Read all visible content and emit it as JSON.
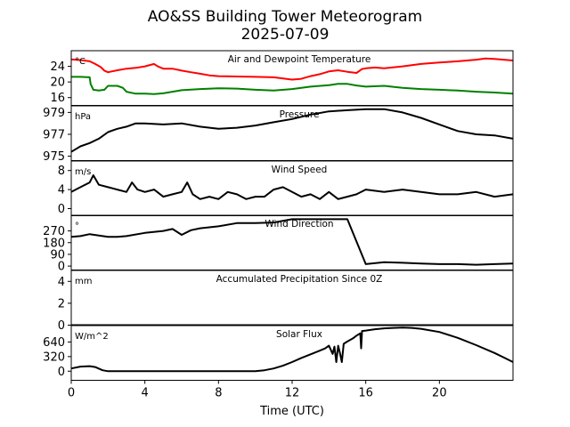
{
  "chart_data": {
    "type": "line",
    "title": "AO&SS Building Tower Meteorogram",
    "subtitle": "2025-07-09",
    "xlabel": "Time (UTC)",
    "x_ticks": [
      0,
      4,
      8,
      12,
      16,
      20
    ],
    "x_tick_labels": [
      "0",
      "4",
      "8",
      "12",
      "16",
      "20"
    ],
    "xlim": [
      0,
      24
    ],
    "panels": [
      {
        "title": "Air and Dewpoint Temperature",
        "unit": "°C",
        "ylim": [
          14,
          28
        ],
        "y_ticks": [
          16,
          20,
          24
        ],
        "y_tick_labels": [
          "16",
          "20",
          "24"
        ],
        "series": [
          {
            "name": "Air Temperature",
            "color": "#ff0000",
            "x": [
              0,
              0.5,
              1.0,
              1.3,
              1.6,
              1.8,
              2.0,
              2.5,
              3.0,
              3.5,
              4.0,
              4.5,
              4.7,
              5.0,
              5.5,
              6.0,
              6.5,
              7.0,
              7.5,
              8.0,
              9.0,
              10.0,
              11.0,
              12.0,
              12.5,
              13.0,
              13.5,
              14.0,
              14.5,
              15.0,
              15.5,
              15.8,
              16.0,
              16.5,
              17.0,
              18.0,
              19.0,
              20.0,
              21.0,
              22.0,
              22.5,
              23.0,
              24.0
            ],
            "y": [
              25.8,
              25.6,
              25.3,
              24.6,
              23.8,
              22.9,
              22.5,
              23.0,
              23.4,
              23.6,
              24.0,
              24.6,
              24.0,
              23.4,
              23.4,
              22.9,
              22.5,
              22.1,
              21.7,
              21.5,
              21.4,
              21.3,
              21.2,
              20.6,
              20.8,
              21.5,
              22.0,
              22.7,
              23.0,
              22.6,
              22.3,
              23.3,
              23.5,
              23.7,
              23.5,
              24.0,
              24.6,
              25.0,
              25.3,
              25.7,
              26.0,
              25.9,
              25.5
            ]
          },
          {
            "name": "Dewpoint Temperature",
            "color": "#008000",
            "x": [
              0,
              0.5,
              1.0,
              1.05,
              1.2,
              1.5,
              1.8,
              2.0,
              2.5,
              2.8,
              3.0,
              3.5,
              4.0,
              4.5,
              5.0,
              5.5,
              6.0,
              7.0,
              8.0,
              9.0,
              10.0,
              11.0,
              12.0,
              13.0,
              14.0,
              14.5,
              15.0,
              15.5,
              16.0,
              17.0,
              18.0,
              19.0,
              20.0,
              21.0,
              22.0,
              23.0,
              24.0
            ],
            "y": [
              21.3,
              21.3,
              21.2,
              19.5,
              18.0,
              17.8,
              18.0,
              19.0,
              19.0,
              18.5,
              17.5,
              17.0,
              17.0,
              16.9,
              17.1,
              17.5,
              17.9,
              18.2,
              18.4,
              18.3,
              18.0,
              17.8,
              18.2,
              18.8,
              19.2,
              19.5,
              19.5,
              19.1,
              18.8,
              19.0,
              18.5,
              18.2,
              18.0,
              17.8,
              17.5,
              17.3,
              17.0
            ]
          }
        ]
      },
      {
        "title": "Pressure",
        "unit": "hPa",
        "ylim": [
          974.6,
          979.6
        ],
        "y_ticks": [
          975,
          977,
          979
        ],
        "y_tick_labels": [
          "975",
          "977",
          "979"
        ],
        "series": [
          {
            "name": "Pressure",
            "color": "#000000",
            "x": [
              0,
              0.5,
              1.0,
              1.5,
              2.0,
              2.5,
              3.0,
              3.5,
              4.0,
              5.0,
              6.0,
              7.0,
              8.0,
              9.0,
              10.0,
              11.0,
              12.0,
              13.0,
              14.0,
              15.0,
              16.0,
              17.0,
              18.0,
              19.0,
              20.0,
              21.0,
              22.0,
              23.0,
              24.0
            ],
            "y": [
              975.4,
              975.9,
              976.2,
              976.6,
              977.2,
              977.5,
              977.7,
              978.0,
              978.0,
              977.9,
              978.0,
              977.7,
              977.5,
              977.6,
              977.8,
              978.1,
              978.4,
              978.8,
              979.1,
              979.2,
              979.3,
              979.3,
              979.0,
              978.5,
              977.9,
              977.3,
              977.0,
              976.9,
              976.6
            ]
          }
        ]
      },
      {
        "title": "Wind Speed",
        "unit": "m/s",
        "ylim": [
          -1.5,
          10
        ],
        "y_ticks": [
          0,
          4,
          8
        ],
        "y_tick_labels": [
          "0",
          "4",
          "8"
        ],
        "series": [
          {
            "name": "Wind Speed",
            "color": "#000000",
            "x": [
              0,
              0.5,
              1.0,
              1.2,
              1.5,
              2.0,
              2.5,
              3.0,
              3.3,
              3.6,
              4.0,
              4.5,
              5.0,
              5.5,
              6.0,
              6.3,
              6.6,
              7.0,
              7.5,
              8.0,
              8.5,
              9.0,
              9.5,
              10.0,
              10.5,
              11.0,
              11.5,
              12.0,
              12.5,
              13.0,
              13.5,
              14.0,
              14.5,
              15.0,
              15.5,
              16.0,
              17.0,
              18.0,
              19.0,
              20.0,
              21.0,
              22.0,
              23.0,
              24.0
            ],
            "y": [
              3.5,
              4.5,
              5.5,
              7.0,
              5.0,
              4.5,
              4.0,
              3.5,
              5.5,
              4.0,
              3.5,
              4.0,
              2.5,
              3.0,
              3.5,
              5.5,
              3.0,
              2.0,
              2.5,
              2.0,
              3.5,
              3.0,
              2.0,
              2.5,
              2.5,
              4.0,
              4.5,
              3.5,
              2.5,
              3.0,
              2.0,
              3.5,
              2.0,
              2.5,
              3.0,
              4.0,
              3.5,
              4.0,
              3.5,
              3.0,
              3.0,
              3.5,
              2.5,
              3.0
            ]
          }
        ]
      },
      {
        "title": "Wind Direction",
        "unit": "°",
        "ylim": [
          -30,
          390
        ],
        "y_ticks": [
          0,
          90,
          180,
          270
        ],
        "y_tick_labels": [
          "0",
          "90",
          "180",
          "270"
        ],
        "series": [
          {
            "name": "Wind Direction",
            "color": "#000000",
            "x": [
              0,
              0.5,
              1.0,
              1.5,
              2.0,
              2.5,
              3.0,
              4.0,
              5.0,
              5.5,
              6.0,
              6.5,
              7.0,
              8.0,
              9.0,
              10.0,
              11.0,
              12.0,
              13.0,
              14.0,
              15.0,
              16.0,
              17.0,
              18.0,
              19.0,
              20.0,
              21.0,
              22.0,
              23.0,
              24.0
            ],
            "y": [
              225,
              230,
              245,
              235,
              225,
              225,
              230,
              255,
              270,
              285,
              240,
              275,
              290,
              305,
              330,
              330,
              335,
              360,
              360,
              360,
              360,
              15,
              30,
              25,
              20,
              15,
              15,
              10,
              15,
              20
            ]
          }
        ]
      },
      {
        "title": "Accumulated Precipitation Since 0Z",
        "unit": "mm",
        "ylim": [
          0,
          5
        ],
        "y_ticks": [
          0,
          2,
          4
        ],
        "y_tick_labels": [
          "0",
          "2",
          "4"
        ],
        "series": [
          {
            "name": "Accumulated Precipitation",
            "color": "#000000",
            "x": [
              0,
              24
            ],
            "y": [
              0,
              0
            ]
          }
        ]
      },
      {
        "title": "Solar Flux",
        "unit": "W/m^2",
        "ylim": [
          -200,
          1000
        ],
        "y_ticks": [
          0,
          320,
          640
        ],
        "y_tick_labels": [
          "0",
          "320",
          "640"
        ],
        "series": [
          {
            "name": "Solar Flux",
            "color": "#000000",
            "x": [
              0,
              0.5,
              1.0,
              1.3,
              1.7,
              2.0,
              3.0,
              5.0,
              8.0,
              10.0,
              10.5,
              11.0,
              11.5,
              12.0,
              12.5,
              13.0,
              13.5,
              13.8,
              14.0,
              14.2,
              14.3,
              14.4,
              14.5,
              14.6,
              14.7,
              14.8,
              15.0,
              15.3,
              15.5,
              15.7,
              15.75,
              15.8,
              16.0,
              16.5,
              17.0,
              17.5,
              18.0,
              18.5,
              19.0,
              20.0,
              21.0,
              22.0,
              23.0,
              23.5,
              24.0
            ],
            "y": [
              60,
              100,
              110,
              90,
              20,
              0,
              0,
              0,
              0,
              0,
              20,
              60,
              120,
              200,
              290,
              370,
              450,
              500,
              560,
              380,
              540,
              200,
              560,
              400,
              200,
              600,
              650,
              720,
              780,
              830,
              500,
              880,
              890,
              920,
              940,
              950,
              955,
              950,
              930,
              860,
              730,
              570,
              400,
              300,
              200
            ]
          }
        ]
      }
    ]
  }
}
